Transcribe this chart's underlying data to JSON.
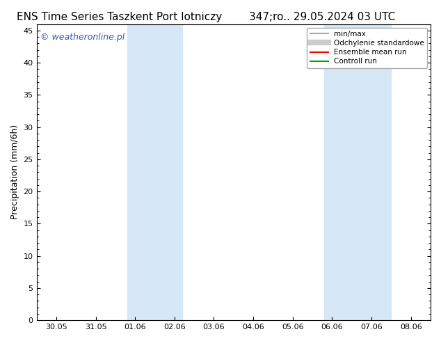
{
  "title_left": "ENS Time Series Taszkent Port lotniczy",
  "title_right": "347;ro.. 29.05.2024 03 UTC",
  "ylabel": "Precipitation (mm/6h)",
  "watermark": "© weatheronline.pl",
  "ylim": [
    0,
    46
  ],
  "yticks": [
    0,
    5,
    10,
    15,
    20,
    25,
    30,
    35,
    40,
    45
  ],
  "xtick_labels": [
    "30.05",
    "31.05",
    "01.06",
    "02.06",
    "03.06",
    "04.06",
    "05.06",
    "06.06",
    "07.06",
    "08.06"
  ],
  "xtick_positions": [
    0,
    1,
    2,
    3,
    4,
    5,
    6,
    7,
    8,
    9
  ],
  "xlim": [
    -0.5,
    9.5
  ],
  "shade_bands": [
    {
      "xmin": 1.8,
      "xmax": 3.2
    },
    {
      "xmin": 6.8,
      "xmax": 8.5
    }
  ],
  "shade_color": "#d6e8f7",
  "legend_entries": [
    {
      "label": "min/max",
      "color": "#aaaaaa",
      "lw": 1.5,
      "style": "-"
    },
    {
      "label": "Odchylenie standardowe",
      "color": "#cccccc",
      "lw": 6,
      "style": "-"
    },
    {
      "label": "Ensemble mean run",
      "color": "#ff0000",
      "lw": 1.5,
      "style": "-"
    },
    {
      "label": "Controll run",
      "color": "#00aa00",
      "lw": 1.5,
      "style": "-"
    }
  ],
  "background_color": "#ffffff",
  "title_fontsize": 11,
  "watermark_color": "#3355bb",
  "watermark_fontsize": 9,
  "ylabel_fontsize": 9,
  "tick_fontsize": 8
}
